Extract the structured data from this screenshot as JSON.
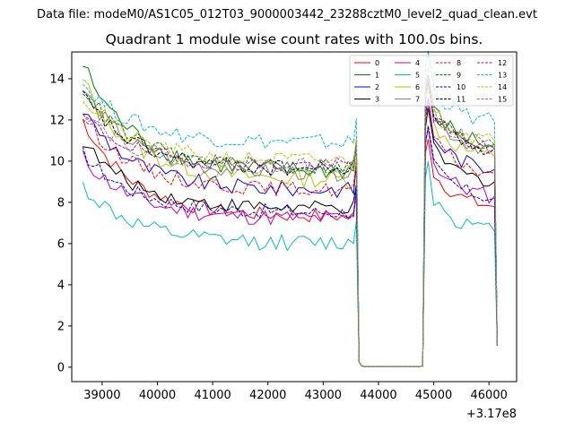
{
  "suptitle": "Data file: modeM0/AS1C05_012T03_9000003442_23288cztM0_level2_quad_clean.evt",
  "chart_data": {
    "type": "line",
    "title": "Quadrant 1 module wise count rates with 100.0s bins.",
    "xlabel": "",
    "ylabel": "",
    "x_offset_label": "+3.17e8",
    "xlim": [
      38450,
      46500
    ],
    "ylim": [
      -0.7,
      15.3
    ],
    "x_ticks": [
      39000,
      40000,
      41000,
      42000,
      43000,
      44000,
      45000,
      46000
    ],
    "x_tick_labels": [
      "39000",
      "40000",
      "41000",
      "42000",
      "43000",
      "44000",
      "45000",
      "46000"
    ],
    "y_ticks": [
      0,
      2,
      4,
      6,
      8,
      10,
      12,
      14
    ],
    "y_tick_labels": [
      "0",
      "2",
      "4",
      "6",
      "8",
      "10",
      "12",
      "14"
    ],
    "grid": false,
    "legend_placement": "top-right",
    "series": [
      {
        "name": "0",
        "color": "#ff0000",
        "dash": "solid",
        "start": 12.0,
        "plateau": 7.3,
        "seg2": 8.2,
        "noise": 0.35
      },
      {
        "name": "1",
        "color": "#008000",
        "dash": "solid",
        "start": 14.7,
        "plateau": 9.5,
        "seg2": 11.2,
        "noise": 0.45
      },
      {
        "name": "2",
        "color": "#0000ff",
        "dash": "solid",
        "start": 12.5,
        "plateau": 8.6,
        "seg2": 10.0,
        "noise": 0.4
      },
      {
        "name": "3",
        "color": "#000000",
        "dash": "solid",
        "start": 11.0,
        "plateau": 7.7,
        "seg2": 9.4,
        "noise": 0.35
      },
      {
        "name": "4",
        "color": "#bf00bf",
        "dash": "solid",
        "start": 10.2,
        "plateau": 7.2,
        "seg2": 8.7,
        "noise": 0.4
      },
      {
        "name": "5",
        "color": "#00bfbf",
        "dash": "solid",
        "start": 8.8,
        "plateau": 6.0,
        "seg2": 7.0,
        "noise": 0.4
      },
      {
        "name": "6",
        "color": "#bfbf00",
        "dash": "solid",
        "start": 13.9,
        "plateau": 9.1,
        "seg2": 10.6,
        "noise": 0.45
      },
      {
        "name": "7",
        "color": "#808080",
        "dash": "solid",
        "start": 13.5,
        "plateau": 9.4,
        "seg2": 11.0,
        "noise": 0.4
      },
      {
        "name": "8",
        "color": "#ff0000",
        "dash": "dashed",
        "start": 12.2,
        "plateau": 8.6,
        "seg2": 9.8,
        "noise": 0.35
      },
      {
        "name": "9",
        "color": "#008000",
        "dash": "dashed",
        "start": 13.6,
        "plateau": 9.7,
        "seg2": 11.1,
        "noise": 0.4
      },
      {
        "name": "10",
        "color": "#0000ff",
        "dash": "dashed",
        "start": 10.4,
        "plateau": 7.5,
        "seg2": 8.6,
        "noise": 0.35
      },
      {
        "name": "11",
        "color": "#000000",
        "dash": "dashed",
        "start": 13.2,
        "plateau": 9.6,
        "seg2": 11.0,
        "noise": 0.4
      },
      {
        "name": "12",
        "color": "#bf00bf",
        "dash": "dashed",
        "start": 12.2,
        "plateau": 9.8,
        "seg2": 11.0,
        "noise": 0.35
      },
      {
        "name": "13",
        "color": "#00bfbf",
        "dash": "dashed",
        "start": 13.8,
        "plateau": 10.9,
        "seg2": 12.3,
        "noise": 0.4
      },
      {
        "name": "14",
        "color": "#bfbf00",
        "dash": "dashed",
        "start": 13.1,
        "plateau": 10.0,
        "seg2": 11.4,
        "noise": 0.4
      },
      {
        "name": "15",
        "color": "#808080",
        "dash": "dashed",
        "start": 12.6,
        "plateau": 9.7,
        "seg2": 11.2,
        "noise": 0.4
      }
    ]
  }
}
